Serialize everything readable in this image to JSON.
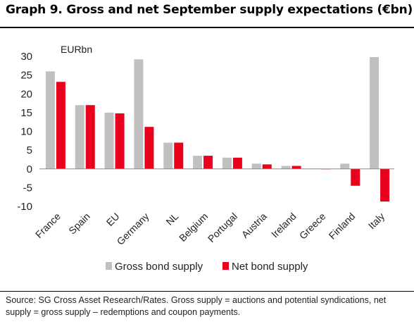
{
  "title": "Graph 9.  Gross and net September supply expectations (€bn)",
  "source": "Source: SG Cross Asset Research/Rates.  Gross supply = auctions and potential syndications, net supply = gross supply – redemptions and coupon payments.",
  "chart_data": {
    "type": "bar",
    "unit_label": "EURbn",
    "categories": [
      "France",
      "Spain",
      "EU",
      "Germany",
      "NL",
      "Belgium",
      "Portugal",
      "Austria",
      "Ireland",
      "Greece",
      "Finland",
      "Italy"
    ],
    "series": [
      {
        "name": "Gross bond supply",
        "color": "#c0c0c0",
        "values": [
          26,
          17,
          15,
          29.2,
          7,
          3.5,
          3,
          1.4,
          0.8,
          0.1,
          1.4,
          29.8
        ]
      },
      {
        "name": "Net bond supply",
        "color": "#e8001c",
        "values": [
          23.2,
          17,
          14.8,
          11.2,
          7,
          3.5,
          3,
          1.2,
          0.8,
          0,
          -4.5,
          -8.7
        ]
      }
    ],
    "ylim": [
      -10,
      30
    ],
    "yticks": [
      -10,
      -5,
      0,
      5,
      10,
      15,
      20,
      25,
      30
    ],
    "legend_position": "bottom",
    "grid": false
  }
}
